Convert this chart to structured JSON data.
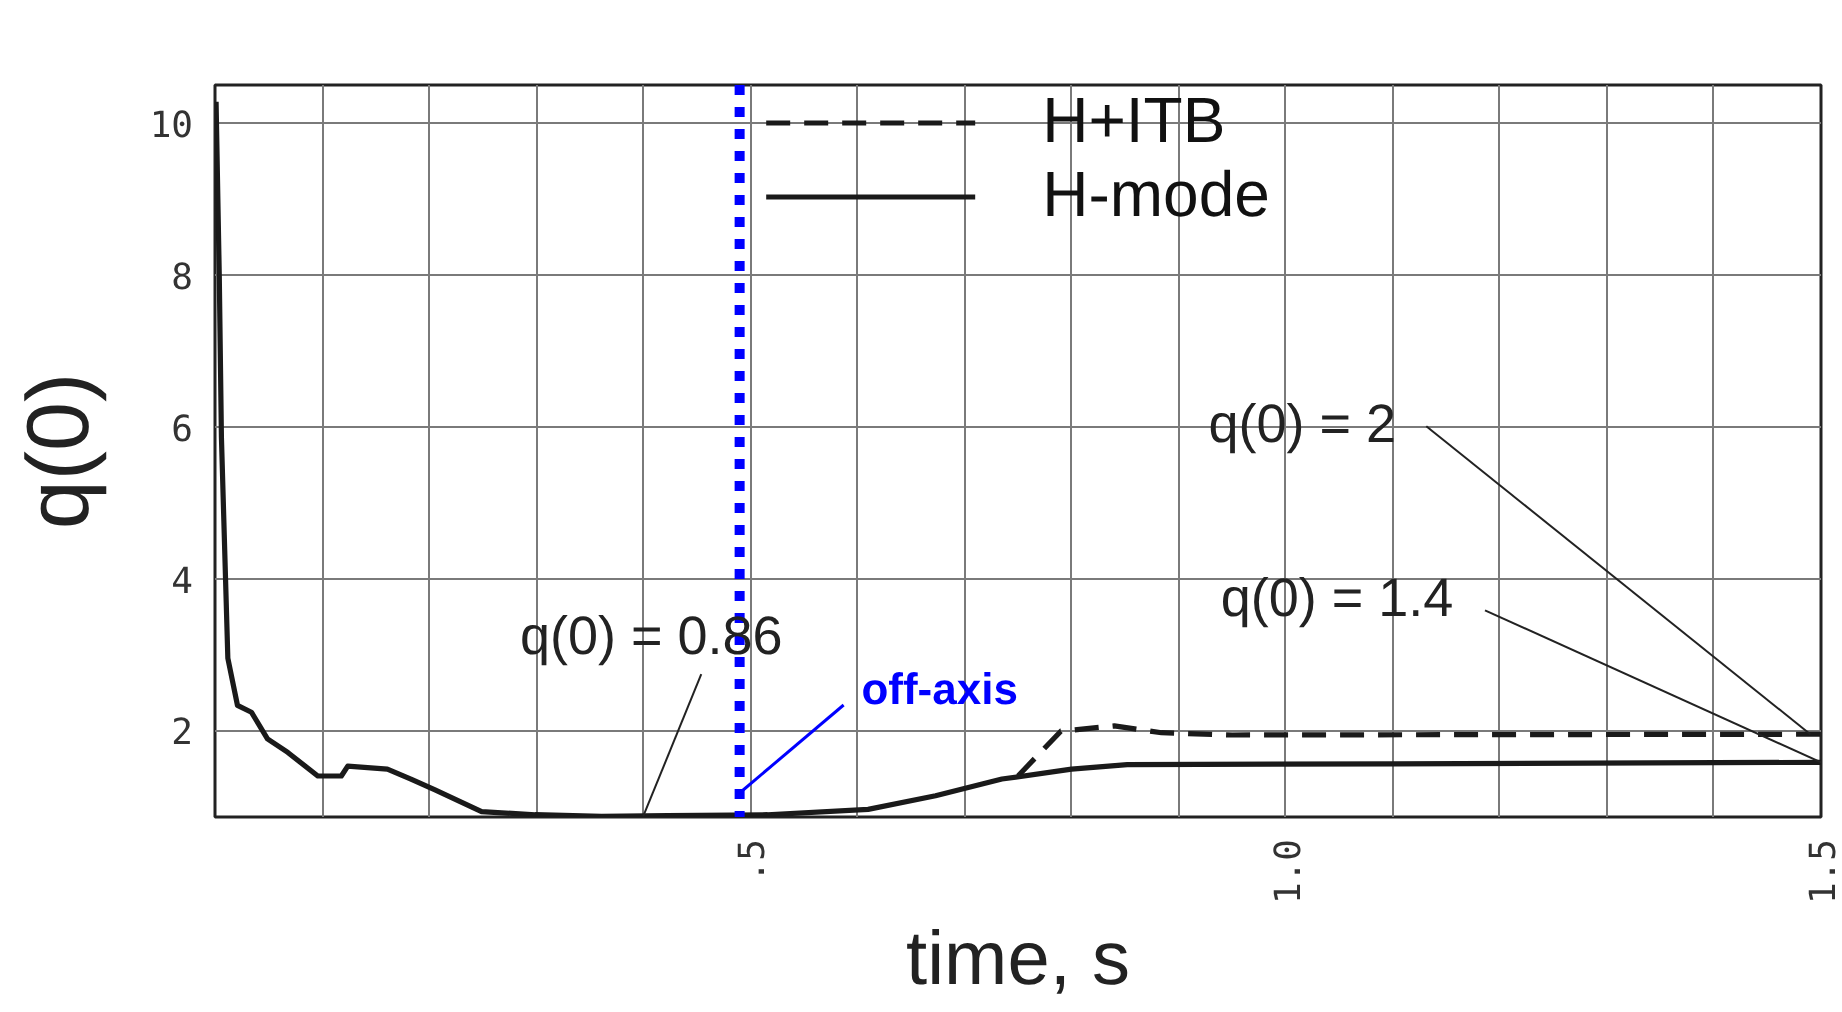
{
  "chart_data": {
    "type": "line",
    "xlabel": "time, s",
    "ylabel": "q(0)",
    "xlim": [
      0,
      1.5
    ],
    "ylim": [
      0.86,
      10.5
    ],
    "xticks": [
      {
        "value": 0.1,
        "label": null
      },
      {
        "value": 0.2,
        "label": null
      },
      {
        "value": 0.3,
        "label": null
      },
      {
        "value": 0.4,
        "label": null
      },
      {
        "value": 0.5,
        "label": ".5"
      },
      {
        "value": 0.6,
        "label": null
      },
      {
        "value": 0.7,
        "label": null
      },
      {
        "value": 0.8,
        "label": null
      },
      {
        "value": 0.9,
        "label": null
      },
      {
        "value": 1.0,
        "label": "1.0"
      },
      {
        "value": 1.1,
        "label": null
      },
      {
        "value": 1.2,
        "label": null
      },
      {
        "value": 1.3,
        "label": null
      },
      {
        "value": 1.4,
        "label": null
      },
      {
        "value": 1.5,
        "label": "1.5"
      }
    ],
    "yticks": [
      2,
      4,
      6,
      8,
      10
    ],
    "grid": true,
    "legend": "top",
    "series": [
      {
        "name": "H+ITB",
        "color": "#1a1a1a",
        "line_style": "dashed",
        "x": [
          0.75,
          0.79,
          0.84,
          0.884,
          0.95,
          1.5
        ],
        "values": [
          1.4,
          1.99,
          2.06,
          1.97,
          1.94,
          1.95
        ]
      },
      {
        "name": "H-mode",
        "color": "#1a1a1a",
        "line_style": "solid",
        "x": [
          0.001,
          0.004,
          0.006,
          0.012,
          0.021,
          0.034,
          0.049,
          0.068,
          0.096,
          0.118,
          0.124,
          0.161,
          0.183,
          0.205,
          0.249,
          0.299,
          0.361,
          0.423,
          0.516,
          0.61,
          0.673,
          0.735,
          0.8,
          0.852,
          1.103,
          1.5
        ],
        "values": [
          10.28,
          7.98,
          5.86,
          2.95,
          2.33,
          2.24,
          1.89,
          1.71,
          1.4,
          1.4,
          1.53,
          1.49,
          1.36,
          1.22,
          0.93,
          0.89,
          0.87,
          0.88,
          0.89,
          0.96,
          1.14,
          1.36,
          1.49,
          1.55,
          1.56,
          1.58
        ]
      }
    ],
    "annotations": [
      {
        "text": "q(0) = 0.86",
        "x": 0.4,
        "y": 0.87
      },
      {
        "text": "q(0) = 2",
        "x": 1.49,
        "y": 1.95
      },
      {
        "text": "q(0) = 1.4",
        "x": 1.5,
        "y": 1.58
      }
    ],
    "ref_lines": [
      {
        "axis": "x",
        "value": 0.49,
        "label": "off-axis",
        "color": "#0000ff",
        "line_style": "dotted"
      }
    ]
  }
}
